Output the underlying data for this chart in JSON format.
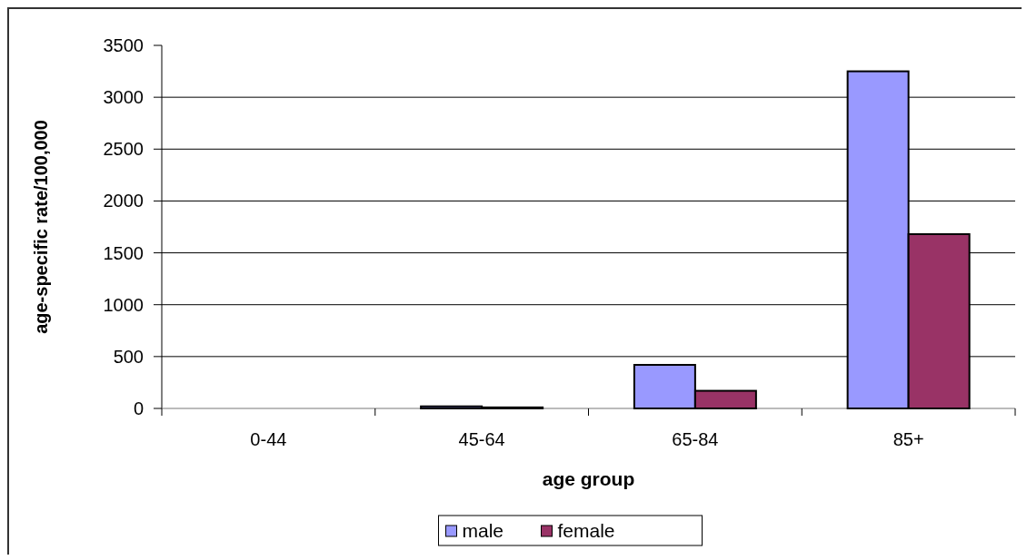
{
  "chart_data": {
    "type": "bar",
    "xlabel": "age group",
    "ylabel": "age-specific rate/100,000",
    "categories": [
      "0-44",
      "45-64",
      "65-84",
      "85+"
    ],
    "series": [
      {
        "name": "male",
        "color": "#9999ff",
        "values": [
          0,
          20,
          420,
          3250
        ]
      },
      {
        "name": "female",
        "color": "#993366",
        "values": [
          0,
          10,
          170,
          1680
        ]
      }
    ],
    "ylim": [
      0,
      3500
    ],
    "yticks": [
      0,
      500,
      1000,
      1500,
      2000,
      2500,
      3000,
      3500
    ],
    "grid": "y",
    "legend": "bottom"
  }
}
